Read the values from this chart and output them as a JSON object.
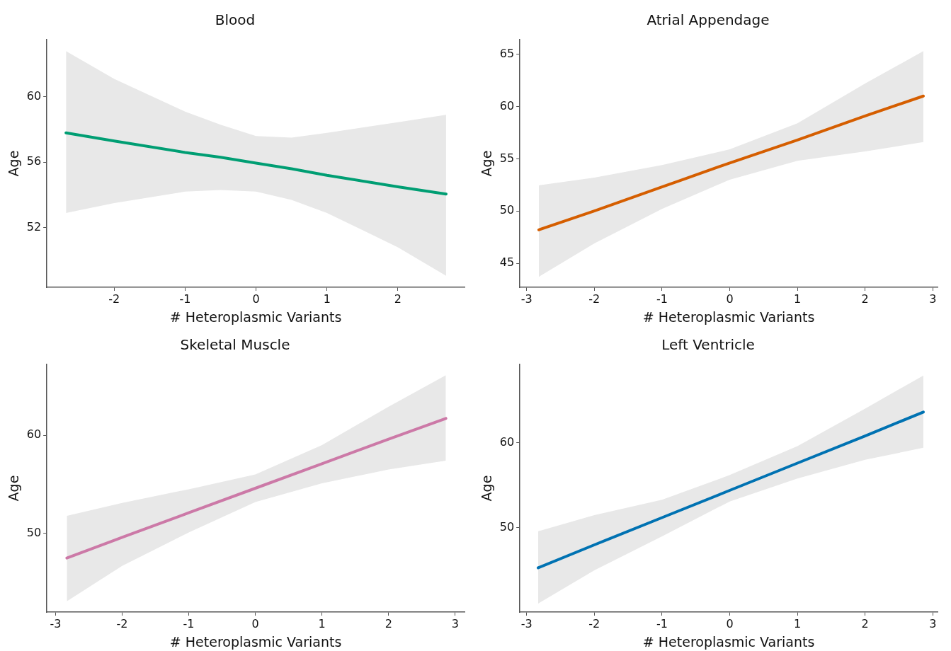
{
  "chart_data": [
    {
      "type": "line",
      "title": "Blood",
      "xlabel": "# Heteroplasmic Variants",
      "ylabel": "Age",
      "xlim": [
        -2.95,
        2.94
      ],
      "xticks": [
        -2,
        -1,
        0,
        1,
        2
      ],
      "ylim": [
        48.35,
        63.5
      ],
      "yticks": [
        52,
        56,
        60
      ],
      "grid": false,
      "series": [
        {
          "color": "#009e73",
          "x": [
            -2.68,
            -2,
            -1,
            -0.5,
            0,
            0.5,
            1,
            2,
            2.68
          ],
          "values": [
            57.8,
            57.3,
            56.6,
            56.3,
            55.95,
            55.6,
            55.2,
            54.5,
            54.05
          ],
          "lower": [
            52.9,
            53.5,
            54.2,
            54.3,
            54.2,
            53.7,
            52.9,
            50.8,
            49.05
          ],
          "upper": [
            62.8,
            61.1,
            59.1,
            58.3,
            57.6,
            57.5,
            57.8,
            58.45,
            58.9
          ]
        }
      ]
    },
    {
      "type": "line",
      "title": "Atrial Appendage",
      "xlabel": "# Heteroplasmic Variants",
      "ylabel": "Age",
      "xlim": [
        -3.1,
        3.07
      ],
      "xticks": [
        -3,
        -2,
        -1,
        0,
        1,
        2,
        3
      ],
      "ylim": [
        42.7,
        66.4
      ],
      "yticks": [
        45,
        50,
        55,
        60,
        65
      ],
      "grid": false,
      "series": [
        {
          "color": "#d55e00",
          "x": [
            -2.82,
            -2,
            -1,
            0,
            1,
            2,
            2.86
          ],
          "values": [
            48.2,
            50.0,
            52.3,
            54.6,
            56.8,
            59.1,
            61.0
          ],
          "lower": [
            43.7,
            46.9,
            50.2,
            53.0,
            54.8,
            55.7,
            56.6
          ],
          "upper": [
            52.45,
            53.2,
            54.4,
            55.9,
            58.4,
            62.2,
            65.3
          ]
        }
      ]
    },
    {
      "type": "line",
      "title": "Skeletal Muscle",
      "xlabel": "# Heteroplasmic Variants",
      "ylabel": "Age",
      "xlim": [
        -3.13,
        3.14
      ],
      "xticks": [
        -3,
        -2,
        -1,
        0,
        1,
        2,
        3
      ],
      "ylim": [
        42.0,
        67.2
      ],
      "yticks": [
        50,
        60
      ],
      "grid": false,
      "series": [
        {
          "color": "#cc79a7",
          "x": [
            -2.83,
            -2,
            -1,
            0,
            1,
            2,
            2.86
          ],
          "values": [
            47.5,
            49.6,
            52.1,
            54.6,
            57.1,
            59.6,
            61.7
          ],
          "lower": [
            43.1,
            46.7,
            50.1,
            53.2,
            55.1,
            56.5,
            57.4
          ],
          "upper": [
            51.8,
            53.1,
            54.5,
            56.0,
            59.0,
            62.9,
            66.1
          ]
        }
      ]
    },
    {
      "type": "line",
      "title": "Left Ventricle",
      "xlabel": "# Heteroplasmic Variants",
      "ylabel": "Age",
      "xlim": [
        -3.1,
        3.07
      ],
      "xticks": [
        -3,
        -2,
        -1,
        0,
        1,
        2,
        3
      ],
      "ylim": [
        40.1,
        69.2
      ],
      "yticks": [
        50,
        60
      ],
      "grid": false,
      "series": [
        {
          "color": "#0072b2",
          "x": [
            -2.83,
            -2,
            -1,
            0,
            1,
            2,
            2.86
          ],
          "values": [
            45.3,
            48.0,
            51.2,
            54.4,
            57.6,
            60.8,
            63.6
          ],
          "lower": [
            41.1,
            45.0,
            49.0,
            53.1,
            55.8,
            58.0,
            59.4
          ],
          "upper": [
            49.6,
            51.5,
            53.3,
            56.2,
            59.6,
            64.0,
            67.9
          ]
        }
      ]
    }
  ]
}
